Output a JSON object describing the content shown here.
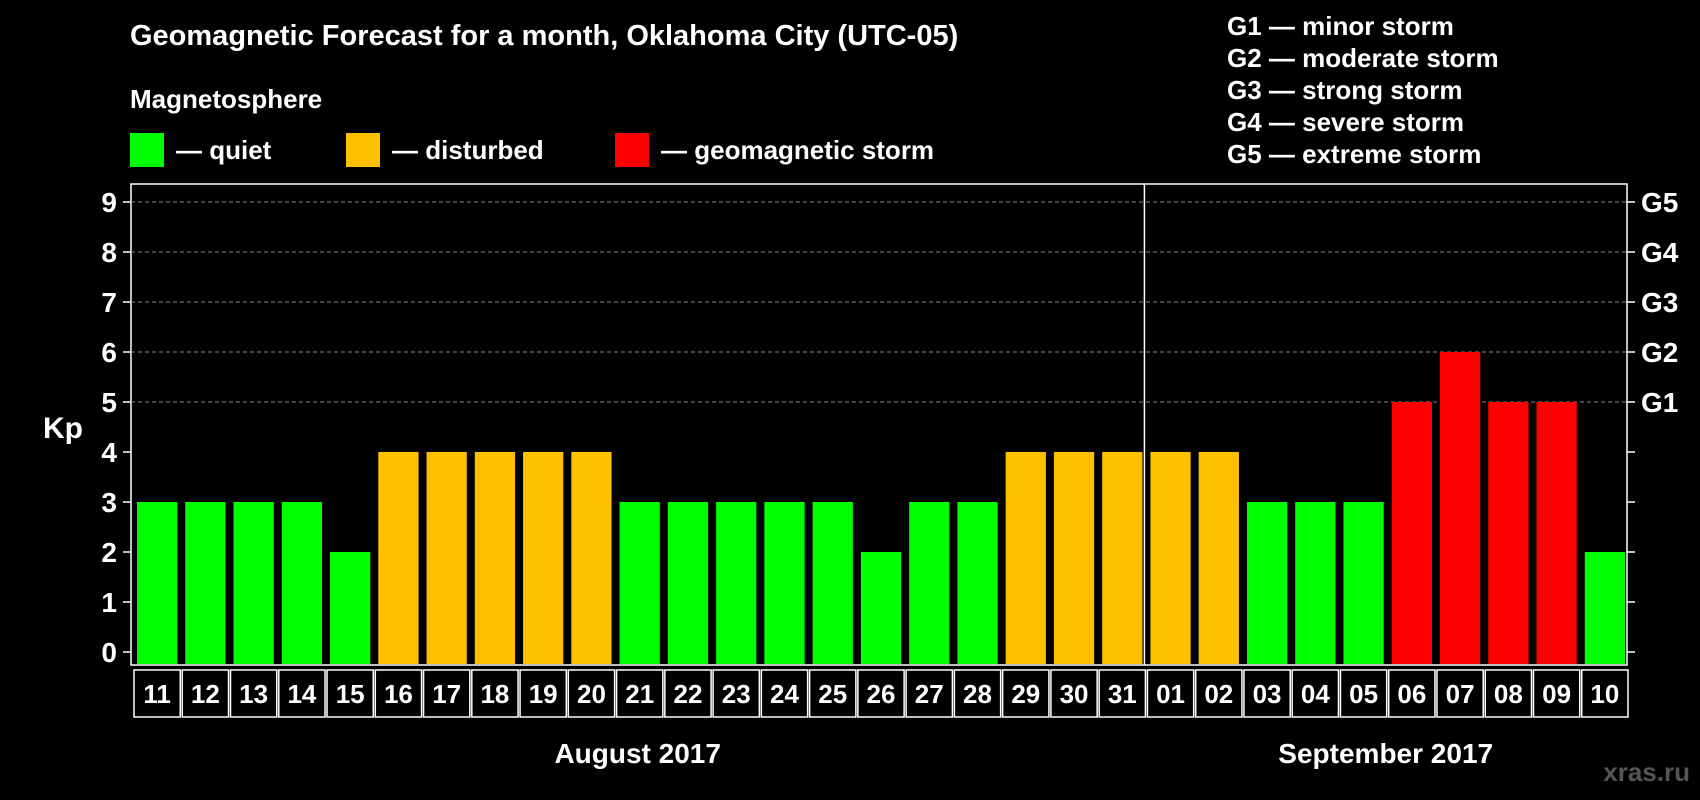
{
  "title": "Geomagnetic Forecast for a month, Oklahoma City (UTC-05)",
  "subtitle": "Magnetosphere",
  "legend": [
    {
      "label": "— quiet",
      "color": "#00ff00"
    },
    {
      "label": "— disturbed",
      "color": "#ffc000"
    },
    {
      "label": "— geomagnetic storm",
      "color": "#ff0000"
    }
  ],
  "g_levels": [
    "G1 — minor storm",
    "G2 — moderate storm",
    "G3 — strong storm",
    "G4 — severe storm",
    "G5 — extreme storm"
  ],
  "watermark": "xras.ru",
  "chart_data": {
    "type": "bar",
    "ylabel": "Kp",
    "ylim": [
      0,
      9
    ],
    "yticks": [
      0,
      1,
      2,
      3,
      4,
      5,
      6,
      7,
      8,
      9
    ],
    "right_axis_labels": {
      "5": "G1",
      "6": "G2",
      "7": "G3",
      "8": "G4",
      "9": "G5"
    },
    "grid": "dashed horizontal lines at 5-9",
    "categories": [
      "11",
      "12",
      "13",
      "14",
      "15",
      "16",
      "17",
      "18",
      "19",
      "20",
      "21",
      "22",
      "23",
      "24",
      "25",
      "26",
      "27",
      "28",
      "29",
      "30",
      "31",
      "01",
      "02",
      "03",
      "04",
      "05",
      "06",
      "07",
      "08",
      "09",
      "10"
    ],
    "values": [
      3,
      3,
      3,
      3,
      2,
      4,
      4,
      4,
      4,
      4,
      3,
      3,
      3,
      3,
      3,
      2,
      3,
      3,
      4,
      4,
      4,
      4,
      4,
      3,
      3,
      3,
      5,
      6,
      5,
      5,
      2
    ],
    "color_rule": {
      "quiet": "Kp < 4",
      "disturbed": "Kp = 4",
      "geomagnetic storm": "Kp >= 5"
    },
    "colors": {
      "quiet": "#00ff00",
      "disturbed": "#ffc000",
      "storm": "#ff0000"
    },
    "months": [
      {
        "label": "August 2017",
        "start_index": 0,
        "end_index": 20
      },
      {
        "label": "September 2017",
        "start_index": 21,
        "end_index": 30
      }
    ],
    "month_divider_after_index": 20
  }
}
